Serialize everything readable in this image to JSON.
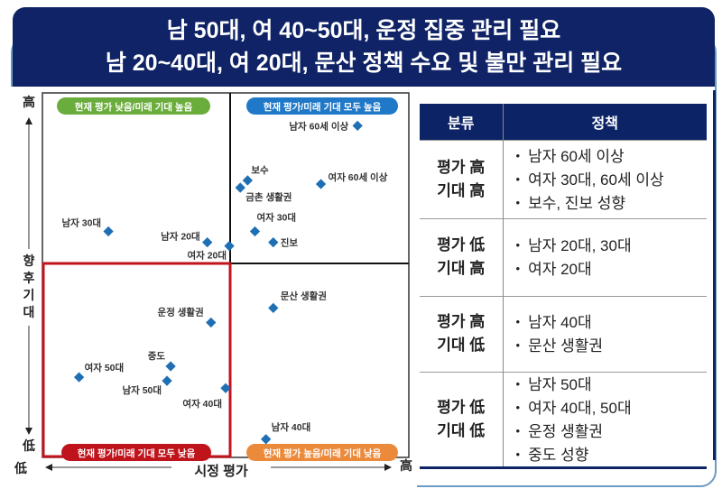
{
  "title": {
    "line1": "남 50대, 여 40~50대, 운정 집중 관리 필요",
    "line2": "남 20~40대, 여 20대, 문산 정책 수요 및 불만 관리 필요"
  },
  "colors": {
    "navy": "#0f2366",
    "point": "#1f6fb5",
    "green": "#6aad3c",
    "blue": "#1f78c8",
    "red": "#c0141c",
    "orange": "#ec8a3c"
  },
  "chart_data": {
    "type": "scatter",
    "xlabel": "시정 평가",
    "ylabel": "향후기대",
    "x_low": "低",
    "x_high": "高",
    "y_low": "低",
    "y_high": "高",
    "xlim": [
      0,
      10
    ],
    "ylim": [
      0,
      10
    ],
    "grid": false,
    "quadrants": {
      "top_left": "현재 평가 낮음/미래 기대 높음",
      "top_right": "현재 평가/미래 기대 모두 높음",
      "bottom_left": "현재 평가/미래 기대 모두 낮음",
      "bottom_right": "현재 평가 높음/미래 기대 낮음"
    },
    "points": [
      {
        "label": "남자 60세 이상",
        "x": 8.6,
        "y": 9.1
      },
      {
        "label": "보수",
        "x": 5.6,
        "y": 7.6
      },
      {
        "label": "금촌 생활권",
        "x": 5.4,
        "y": 7.4
      },
      {
        "label": "여자 60세 이상",
        "x": 7.6,
        "y": 7.5
      },
      {
        "label": "여자 30대",
        "x": 5.8,
        "y": 6.2
      },
      {
        "label": "진보",
        "x": 6.3,
        "y": 5.9
      },
      {
        "label": "남자 30대",
        "x": 1.8,
        "y": 6.2
      },
      {
        "label": "남자 20대",
        "x": 4.5,
        "y": 5.9
      },
      {
        "label": "여자 20대",
        "x": 5.1,
        "y": 5.8
      },
      {
        "label": "문산 생활권",
        "x": 6.3,
        "y": 4.1
      },
      {
        "label": "운정 생활권",
        "x": 4.6,
        "y": 3.7
      },
      {
        "label": "중도",
        "x": 3.5,
        "y": 2.5
      },
      {
        "label": "여자 50대",
        "x": 1.0,
        "y": 2.2
      },
      {
        "label": "남자 50대",
        "x": 3.4,
        "y": 2.1
      },
      {
        "label": "여자 40대",
        "x": 5.0,
        "y": 1.9
      },
      {
        "label": "남자 40대",
        "x": 6.1,
        "y": 0.5
      }
    ]
  },
  "table": {
    "headers": [
      "분류",
      "정책"
    ],
    "rows": [
      {
        "cat1": "평가 高",
        "cat2": "기대 高",
        "items": [
          "남자 60세 이상",
          "여자 30대, 60세 이상",
          "보수, 진보 성향"
        ]
      },
      {
        "cat1": "평가 低",
        "cat2": "기대 高",
        "items": [
          "남자 20대, 30대",
          "여자 20대"
        ]
      },
      {
        "cat1": "평가 高",
        "cat2": "기대 低",
        "items": [
          "남자 40대",
          "문산 생활권"
        ]
      },
      {
        "cat1": "평가 低",
        "cat2": "기대 低",
        "items": [
          "남자 50대",
          "여자 40대, 50대",
          "운정 생활권",
          "중도 성향"
        ]
      }
    ]
  }
}
